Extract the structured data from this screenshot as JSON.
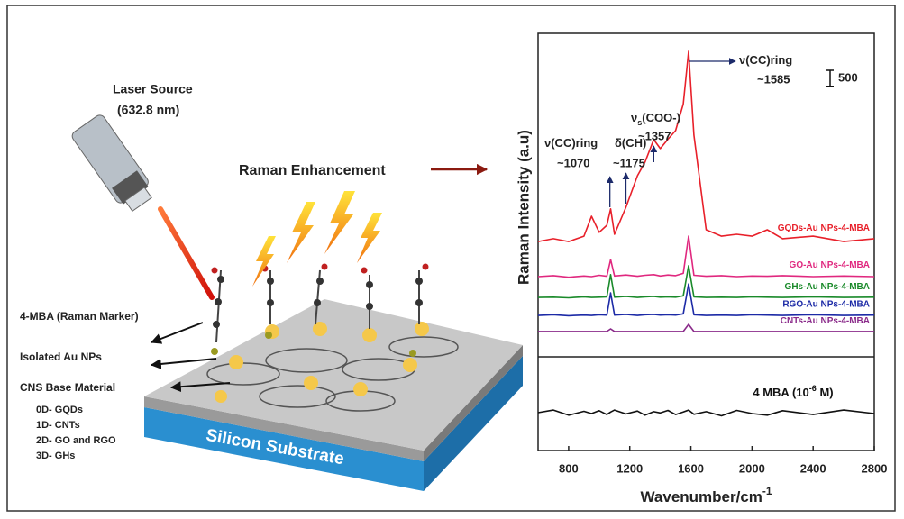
{
  "schematic": {
    "laser_title": "Laser Source",
    "laser_wavelength": "(632.8 nm)",
    "enhancement": "Raman Enhancement",
    "marker": "4-MBA (Raman Marker)",
    "nps": "Isolated Au NPs",
    "base": "CNS Base Material",
    "base_types": [
      "0D- GQDs",
      "1D- CNTs",
      "2D- GO and RGO",
      "3D- GHs"
    ],
    "substrate": "Silicon Substrate"
  },
  "chart_data": {
    "type": "line",
    "ylabel": "Raman Intensity (a.u)",
    "xlabel": [
      {
        "t": "Wavenumber/cm"
      },
      {
        "t": "-1",
        "sup": true
      }
    ],
    "xlim": [
      600,
      2800
    ],
    "xticks": [
      800,
      1200,
      1600,
      2000,
      2400,
      2800
    ],
    "ylim": [
      0,
      13000
    ],
    "scale_bar": 500,
    "x": [
      600,
      700,
      800,
      900,
      950,
      1000,
      1050,
      1075,
      1100,
      1175,
      1250,
      1300,
      1357,
      1400,
      1450,
      1500,
      1550,
      1585,
      1620,
      1700,
      1800,
      1900,
      2000,
      2100,
      2200,
      2400,
      2600,
      2800
    ],
    "series": [
      {
        "name": [
          {
            "t": "GQDs-Au NPs-4-MBA"
          }
        ],
        "color": "#e8202a",
        "values": [
          6510,
          6600,
          6510,
          6680,
          7300,
          6800,
          7020,
          7530,
          6740,
          7580,
          8560,
          8990,
          9690,
          9410,
          9700,
          9970,
          10800,
          12440,
          9830,
          6880,
          6680,
          6740,
          6680,
          6880,
          6600,
          6680,
          6510,
          6600
        ]
      },
      {
        "name": [
          {
            "t": "GO-Au NPs-4-MBA"
          }
        ],
        "color": "#e0287f",
        "values": [
          5420,
          5450,
          5400,
          5440,
          5420,
          5460,
          5430,
          5950,
          5440,
          5470,
          5430,
          5460,
          5480,
          5440,
          5470,
          5450,
          5520,
          6680,
          5460,
          5430,
          5450,
          5420,
          5440,
          5430,
          5450,
          5420,
          5440,
          5420
        ]
      },
      {
        "name": [
          {
            "t": "GHs-Au NPs-4-MBA"
          }
        ],
        "color": "#1a8a2a",
        "values": [
          4770,
          4780,
          4760,
          4790,
          4770,
          4780,
          4790,
          5480,
          4780,
          4800,
          4770,
          4790,
          4800,
          4780,
          4790,
          4780,
          4820,
          5760,
          4790,
          4770,
          4780,
          4770,
          4790,
          4780,
          4770,
          4790,
          4770,
          4780
        ]
      },
      {
        "name": [
          {
            "t": "RGO-Au NPs-4-MBA"
          }
        ],
        "color": "#1c2aa6",
        "values": [
          4210,
          4230,
          4200,
          4220,
          4210,
          4230,
          4220,
          4910,
          4220,
          4240,
          4210,
          4230,
          4240,
          4220,
          4230,
          4220,
          4260,
          5190,
          4230,
          4210,
          4220,
          4210,
          4230,
          4220,
          4210,
          4230,
          4210,
          4220
        ]
      },
      {
        "name": [
          {
            "t": "CNTs-Au NPs-4-MBA"
          }
        ],
        "color": "#8a2a8a",
        "values": [
          3710,
          3710,
          3710,
          3710,
          3710,
          3710,
          3710,
          3790,
          3710,
          3710,
          3710,
          3710,
          3710,
          3710,
          3710,
          3710,
          3710,
          3930,
          3710,
          3710,
          3710,
          3710,
          3710,
          3710,
          3710,
          3710,
          3710,
          3710
        ]
      },
      {
        "name": [
          {
            "t": "4 MBA (10"
          },
          {
            "t": "-6",
            "sup": true
          },
          {
            "t": " M)"
          }
        ],
        "color": "#111111",
        "values": [
          1180,
          1260,
          1100,
          1220,
          1150,
          1240,
          1120,
          1200,
          1260,
          1140,
          1230,
          1100,
          1210,
          1170,
          1250,
          1120,
          1200,
          1260,
          1130,
          1210,
          1080,
          1250,
          1150,
          1100,
          1240,
          1120,
          1260,
          1150
        ]
      }
    ],
    "annotations": [
      {
        "x": 1070,
        "name": [
          {
            "t": "ν(CC)ring"
          }
        ],
        "label": "~1070"
      },
      {
        "x": 1175,
        "name": [
          {
            "t": "δ(CH)"
          }
        ],
        "label": "~1175"
      },
      {
        "x": 1357,
        "name": [
          {
            "t": "ν"
          },
          {
            "t": "s",
            "sub": true
          },
          {
            "t": "(COO-)"
          }
        ],
        "label": "~1357"
      },
      {
        "x": 1585,
        "name": [
          {
            "t": "ν(CC)ring"
          }
        ],
        "label": "~1585"
      }
    ]
  }
}
